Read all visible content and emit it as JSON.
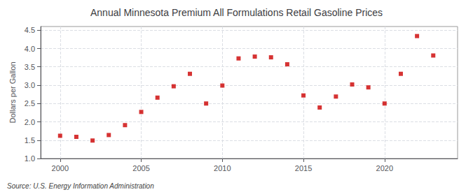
{
  "chart_data": {
    "type": "scatter",
    "title": "Annual Minnesota Premium All Formulations Retail Gasoline Prices",
    "ylabel": "Dollars per Gallon",
    "annotations": [
      "Source: U.S. Energy Information Administration"
    ],
    "x": [
      2000,
      2001,
      2002,
      2003,
      2004,
      2005,
      2006,
      2007,
      2008,
      2009,
      2010,
      2011,
      2012,
      2013,
      2014,
      2015,
      2016,
      2017,
      2018,
      2019,
      2020,
      2021,
      2022,
      2023
    ],
    "values": [
      1.62,
      1.59,
      1.49,
      1.64,
      1.91,
      2.27,
      2.66,
      2.97,
      3.31,
      2.5,
      2.99,
      3.73,
      3.78,
      3.76,
      3.57,
      2.72,
      2.39,
      2.69,
      3.02,
      2.94,
      2.5,
      3.31,
      4.34,
      3.81
    ],
    "color": "#cc0000",
    "marker": "square",
    "xlim": [
      1998.8,
      2024.5
    ],
    "ylim": [
      1.0,
      4.6
    ],
    "xticks": [
      2000,
      2005,
      2010,
      2015,
      2020
    ],
    "yticks": [
      {
        "value": 1.0,
        "label": "1.0"
      },
      1.5,
      {
        "value": 2.0,
        "label": "2.0"
      },
      2.5,
      {
        "value": 3.0,
        "label": "3.0"
      },
      3.5,
      {
        "value": 4.0,
        "label": "4.0"
      },
      4.5
    ],
    "grid": true
  }
}
